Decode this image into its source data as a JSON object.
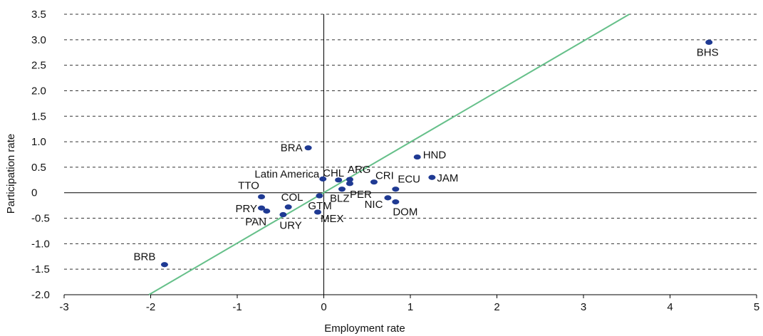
{
  "chart_data": {
    "type": "scatter",
    "title": "",
    "xlabel": "Employment rate",
    "ylabel": "Participation rate",
    "xlim": [
      -3,
      5
    ],
    "ylim": [
      -2.0,
      3.5
    ],
    "x_ticks": [
      -3,
      -2,
      -1,
      0,
      1,
      2,
      3,
      4,
      5
    ],
    "x_tick_labels": [
      "-3",
      "-2",
      "-1",
      "0",
      "1",
      "2",
      "3",
      "4",
      "5"
    ],
    "y_ticks": [
      -2.0,
      -1.5,
      -1.0,
      -0.5,
      0,
      0.5,
      1.0,
      1.5,
      2.0,
      2.5,
      3.0,
      3.5
    ],
    "y_tick_labels": [
      "-2.0",
      "-1.5",
      "-1.0",
      "-0.5",
      "0",
      "0.5",
      "1.0",
      "1.5",
      "2.0",
      "2.5",
      "3.0",
      "3.5"
    ],
    "grid": "horizontal dashed",
    "point_color": "#1f3a93",
    "trend_color": "#66c08a",
    "trendline": {
      "x": [
        -2.02,
        3.53
      ],
      "y": [
        -2.0,
        3.5
      ]
    },
    "points": [
      {
        "label": "BHS",
        "x": 4.45,
        "y": 2.95
      },
      {
        "label": "BRA",
        "x": -0.18,
        "y": 0.88
      },
      {
        "label": "HND",
        "x": 1.08,
        "y": 0.7
      },
      {
        "label": "JAM",
        "x": 1.25,
        "y": 0.3
      },
      {
        "label": "Latin America",
        "x": -0.01,
        "y": 0.27
      },
      {
        "label": "CHL",
        "x": 0.17,
        "y": 0.25
      },
      {
        "label": "ARG",
        "x": 0.3,
        "y": 0.26
      },
      {
        "label": "CRI",
        "x": 0.58,
        "y": 0.21
      },
      {
        "label": "PER",
        "x": 0.3,
        "y": 0.18
      },
      {
        "label": "ECU",
        "x": 0.83,
        "y": 0.07
      },
      {
        "label": "BLZ",
        "x": 0.21,
        "y": 0.07
      },
      {
        "label": "TTO",
        "x": -0.72,
        "y": -0.08
      },
      {
        "label": "NIC",
        "x": 0.74,
        "y": -0.1
      },
      {
        "label": "DOM",
        "x": 0.83,
        "y": -0.18
      },
      {
        "label": "GTM",
        "x": -0.05,
        "y": -0.06
      },
      {
        "label": "COL",
        "x": -0.41,
        "y": -0.28
      },
      {
        "label": "PRY",
        "x": -0.72,
        "y": -0.3
      },
      {
        "label": "PAN",
        "x": -0.66,
        "y": -0.36
      },
      {
        "label": "URY",
        "x": -0.47,
        "y": -0.43
      },
      {
        "label": "MEX",
        "x": -0.07,
        "y": -0.38
      },
      {
        "label": "BRB",
        "x": -1.84,
        "y": -1.41
      }
    ]
  }
}
